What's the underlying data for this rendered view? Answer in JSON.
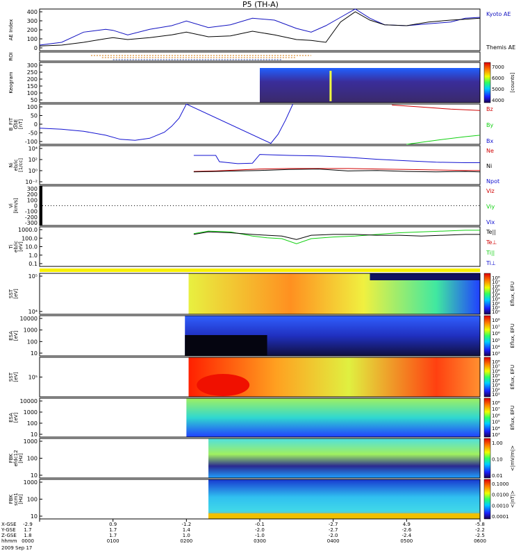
{
  "title": "P5 (TH-A)",
  "date_label": "2009 Sep 17",
  "colors": {
    "kyoto": "#1010c0",
    "themis": "#000000",
    "red": "#d00000",
    "green": "#10d010",
    "blue": "#1010d0"
  },
  "panels": [
    {
      "key": "ae",
      "ylabel": [
        "AE Index"
      ],
      "ticks": [
        "400",
        "300",
        "200",
        "100",
        "0"
      ],
      "legend": [
        {
          "text": "Kyoto AE",
          "color": "#1010c0"
        },
        {
          "text": "Themis AE",
          "color": "#000000"
        }
      ]
    },
    {
      "key": "roi",
      "ylabel": [
        "ROI"
      ],
      "ticks": [],
      "legend": []
    },
    {
      "key": "keogram",
      "ylabel": [
        "Keogram"
      ],
      "ticks": [
        "300",
        "250",
        "200",
        "150",
        "100",
        "50"
      ],
      "legend": [],
      "colorbar": {
        "ticks": [
          "7000",
          "6000",
          "5000",
          "4000"
        ],
        "unit": "[counts]"
      }
    },
    {
      "key": "bfit",
      "ylabel": [
        "B_FIT",
        "GSE",
        "[nT]"
      ],
      "ticks": [
        "100",
        "50",
        "0",
        "-50",
        "-100"
      ],
      "legend": [
        {
          "text": "Bz",
          "color": "#d00000"
        },
        {
          "text": "By",
          "color": "#10d010"
        },
        {
          "text": "Bx",
          "color": "#1010d0"
        }
      ]
    },
    {
      "key": "ni",
      "ylabel": [
        "Ni",
        "eb/ic",
        "[1/cc]"
      ],
      "ticks": [
        "10⁴",
        "10²",
        "10⁰",
        "10⁻²"
      ],
      "legend": [
        {
          "text": "Ne",
          "color": "#d00000"
        },
        {
          "text": "Ni",
          "color": "#000000"
        },
        {
          "text": "Npot",
          "color": "#1010d0"
        }
      ]
    },
    {
      "key": "vi",
      "ylabel": [
        "Vi",
        "[km/s]"
      ],
      "ticks": [
        "300",
        "200",
        "100",
        "0",
        "-100",
        "-200",
        "-300"
      ],
      "legend": [
        {
          "text": "Viz",
          "color": "#d00000"
        },
        {
          "text": "Viy",
          "color": "#10d010"
        },
        {
          "text": "Vix",
          "color": "#1010d0"
        }
      ]
    },
    {
      "key": "ti",
      "ylabel": [
        "Ti",
        "eb/ic",
        "[eV]"
      ],
      "ticks": [
        "1000.0",
        "100.0",
        "10.0",
        "1.0",
        "0.1"
      ],
      "legend": [
        {
          "text": "Te||",
          "color": "#000000"
        },
        {
          "text": "Te⊥",
          "color": "#d00000"
        },
        {
          "text": "Ti||",
          "color": "#10d010"
        },
        {
          "text": "Ti⊥",
          "color": "#1010d0"
        }
      ]
    },
    {
      "key": "sst_e",
      "ylabel": [
        "SST",
        "[eV]"
      ],
      "ticks": [
        "10⁵",
        "10⁴"
      ],
      "legend": [],
      "colorbar": {
        "ticks": [
          "10⁸",
          "10⁷",
          "10⁶",
          "10⁵",
          "10⁴",
          "10³",
          "10²",
          "10¹",
          "10⁰"
        ],
        "unit": "Eflux, EFU"
      }
    },
    {
      "key": "esa_e",
      "ylabel": [
        "ESA",
        "[eV]"
      ],
      "ticks": [
        "10000",
        "1000",
        "100",
        "10"
      ],
      "legend": [],
      "colorbar": {
        "ticks": [
          "10⁸",
          "10⁷",
          "10⁶",
          "10⁵",
          "10⁴",
          "10³"
        ],
        "unit": "Eflux, EFU"
      }
    },
    {
      "key": "sst_i",
      "ylabel": [
        "SST",
        "[eV]"
      ],
      "ticks": [
        "10⁵"
      ],
      "legend": [],
      "colorbar": {
        "ticks": [
          "10⁸",
          "10⁷",
          "10⁶",
          "10⁵",
          "10⁴",
          "10³",
          "10²",
          "10¹"
        ],
        "unit": "Eflux, EFU"
      }
    },
    {
      "key": "esa_i",
      "ylabel": [
        "ESA",
        "[eV]"
      ],
      "ticks": [
        "10000",
        "1000",
        "100",
        "10"
      ],
      "legend": [],
      "colorbar": {
        "ticks": [
          "10⁸",
          "10⁷",
          "10⁶",
          "10⁵",
          "10⁴",
          "10³"
        ],
        "unit": "Eflux, EFU"
      }
    },
    {
      "key": "fbk_e",
      "ylabel": [
        "FBK",
        "efdc12",
        "[Hz]"
      ],
      "ticks": [
        "1000",
        "100",
        "10"
      ],
      "legend": [],
      "colorbar": {
        "ticks": [
          "1.00",
          "0.10",
          "0.01"
        ],
        "unit": "<|mV/m|>"
      }
    },
    {
      "key": "fbk_b",
      "ylabel": [
        "FBK",
        "scm1",
        "[Hz]"
      ],
      "ticks": [
        "1000",
        "100",
        "10"
      ],
      "legend": [],
      "colorbar": {
        "ticks": [
          "0.1000",
          "0.0100",
          "0.0010",
          "0.0001"
        ],
        "unit": "<|nT|>"
      }
    }
  ],
  "x_axis": {
    "row_labels": [
      "X-GSE",
      "Y-GSE",
      "Z-GSE",
      "hhmm"
    ],
    "columns": [
      {
        "x": "-2.9",
        "y": "1.7",
        "z": "1.8",
        "t": "0000"
      },
      {
        "x": "0.9",
        "y": "1.7",
        "z": "1.7",
        "t": "0100"
      },
      {
        "x": "-1.2",
        "y": "1.4",
        "z": "1.0",
        "t": "0200"
      },
      {
        "x": "-0.1",
        "y": "-2.0",
        "z": "-1.0",
        "t": "0300"
      },
      {
        "x": "-2.7",
        "y": "-2.7",
        "z": "-2.0",
        "t": "0400"
      },
      {
        "x": "4.9",
        "y": "-2.6",
        "z": "-2.4",
        "t": "0500"
      },
      {
        "x": "-5.8",
        "y": "-2.2",
        "z": "-2.5",
        "t": "0600"
      }
    ]
  },
  "chart_data": {
    "type": "line",
    "title": "P5 (TH-A)",
    "x_unit": "hhmm (UT), 2009 Sep 17",
    "xlim": [
      0,
      6
    ],
    "series": [
      {
        "name": "Kyoto AE",
        "panel": "ae",
        "x": [
          0,
          0.3,
          0.6,
          0.9,
          1.0,
          1.2,
          1.5,
          1.8,
          2.0,
          2.3,
          2.6,
          2.9,
          3.2,
          3.5,
          3.7,
          3.9,
          4.1,
          4.3,
          4.5,
          4.7,
          5.0,
          5.3,
          5.6,
          5.8,
          6.0
        ],
        "y": [
          30,
          60,
          170,
          200,
          190,
          140,
          200,
          240,
          290,
          220,
          250,
          320,
          300,
          210,
          170,
          240,
          330,
          420,
          320,
          250,
          240,
          260,
          280,
          320,
          330
        ]
      },
      {
        "name": "Themis AE",
        "panel": "ae",
        "x": [
          0,
          0.3,
          0.6,
          0.9,
          1.0,
          1.2,
          1.5,
          1.8,
          2.0,
          2.3,
          2.6,
          2.9,
          3.2,
          3.5,
          3.7,
          3.9,
          4.1,
          4.3,
          4.5,
          4.7,
          5.0,
          5.3,
          5.6,
          5.8,
          6.0
        ],
        "y": [
          20,
          30,
          60,
          100,
          110,
          90,
          110,
          140,
          170,
          120,
          130,
          180,
          140,
          90,
          80,
          60,
          280,
          390,
          300,
          250,
          240,
          280,
          300,
          310,
          320
        ]
      },
      {
        "name": "Bx",
        "panel": "bfit",
        "x": [
          0,
          0.3,
          0.6,
          0.9,
          1.1,
          1.3,
          1.5,
          1.7,
          1.8,
          1.9,
          2.0,
          3.15,
          3.25,
          3.35,
          3.45
        ],
        "y": [
          -20,
          -25,
          -35,
          -55,
          -75,
          -80,
          -70,
          -40,
          -10,
          30,
          100,
          -95,
          -50,
          20,
          100
        ]
      },
      {
        "name": "Bz",
        "panel": "bfit",
        "x": [
          4.8,
          5.2,
          5.6,
          6.0
        ],
        "y": [
          95,
          85,
          75,
          68
        ]
      },
      {
        "name": "By",
        "panel": "bfit",
        "x": [
          5.0,
          5.4,
          5.8,
          6.0
        ],
        "y": [
          -100,
          -80,
          -62,
          -55
        ]
      },
      {
        "name": "Npot",
        "panel": "ni",
        "x": [
          2.1,
          2.4,
          2.45,
          2.7,
          2.9,
          3.0,
          3.4,
          3.8,
          4.2,
          4.6,
          5.0,
          5.4,
          5.8,
          6.0
        ],
        "y": [
          3,
          3,
          1.7,
          1.3,
          1.4,
          3.2,
          3.0,
          2.9,
          2.6,
          2.2,
          1.9,
          1.6,
          1.5,
          1.5
        ]
      },
      {
        "name": "Ne",
        "panel": "ni",
        "x": [
          2.1,
          2.4,
          2.7,
          3.0,
          3.4,
          3.8,
          4.2,
          4.6,
          5.0,
          5.4,
          5.8,
          6.0
        ],
        "y": [
          -0.3,
          -0.2,
          0.0,
          0.2,
          0.3,
          0.3,
          0.3,
          0.2,
          0.1,
          0.0,
          -0.1,
          -0.1
        ]
      },
      {
        "name": "Ni",
        "panel": "ni",
        "x": [
          2.1,
          2.4,
          2.7,
          3.0,
          3.4,
          3.8,
          4.2,
          4.6,
          5.0,
          5.4,
          5.8,
          6.0
        ],
        "y": [
          -0.4,
          -0.3,
          -0.2,
          -0.1,
          0.1,
          0.2,
          -0.2,
          -0.1,
          -0.3,
          -0.4,
          -0.3,
          -0.4
        ]
      },
      {
        "name": "Ti||",
        "panel": "ti",
        "x": [
          2.1,
          2.3,
          2.6,
          2.9,
          3.1,
          3.3,
          3.5,
          3.7,
          4.0,
          4.3,
          4.6,
          4.9,
          5.2,
          5.5,
          5.8,
          6.0
        ],
        "y": [
          2.6,
          2.9,
          2.8,
          2.3,
          2.1,
          2.0,
          1.4,
          2.0,
          2.2,
          2.3,
          2.5,
          2.7,
          2.8,
          2.9,
          3.0,
          3.0
        ]
      },
      {
        "name": "Te||",
        "panel": "ti",
        "x": [
          2.1,
          2.3,
          2.6,
          2.9,
          3.1,
          3.3,
          3.5,
          3.7,
          4.0,
          4.3,
          4.6,
          4.9,
          5.2,
          5.5,
          5.8,
          6.0
        ],
        "y": [
          2.5,
          2.8,
          2.7,
          2.5,
          2.4,
          2.3,
          1.9,
          2.4,
          2.5,
          2.5,
          2.4,
          2.4,
          2.3,
          2.4,
          2.5,
          2.5
        ]
      }
    ]
  }
}
